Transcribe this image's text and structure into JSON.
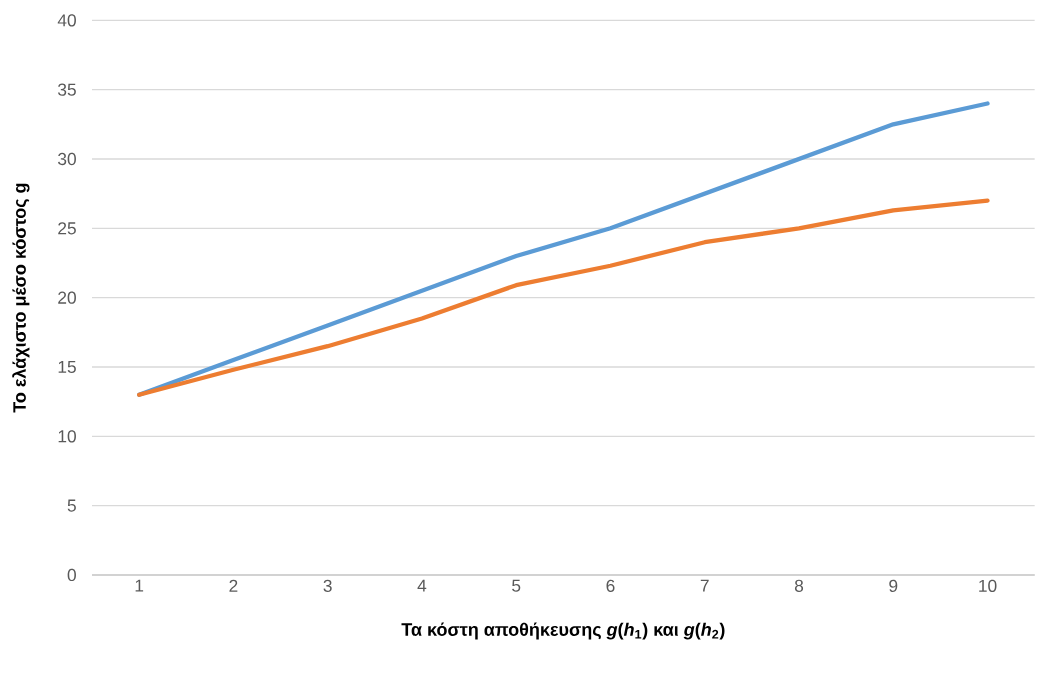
{
  "chart_data": {
    "type": "line",
    "xlabel": "Τα κόστη αποθήκευσης *g*(*h*$_{1}$) και *g*(*h*$_{2}$)",
    "ylabel": "Το ελάχιστο μέσο κόστος g",
    "categories": [
      "1",
      "2",
      "3",
      "4",
      "5",
      "6",
      "7",
      "8",
      "9",
      "10"
    ],
    "series": [
      {
        "color": "#5b9bd5",
        "values": [
          13,
          15.5,
          18,
          20.5,
          23,
          25,
          27.5,
          30,
          32.5,
          34
        ]
      },
      {
        "color": "#ed7d31",
        "values": [
          13,
          14.8,
          16.5,
          18.5,
          20.9,
          22.3,
          24,
          25,
          26.3,
          27
        ]
      }
    ],
    "ylim": [
      0,
      40
    ],
    "yticks": [
      0,
      5,
      10,
      15,
      20,
      25,
      30,
      35,
      40
    ],
    "grid": "y",
    "marker": "none",
    "line_style": "solid"
  }
}
